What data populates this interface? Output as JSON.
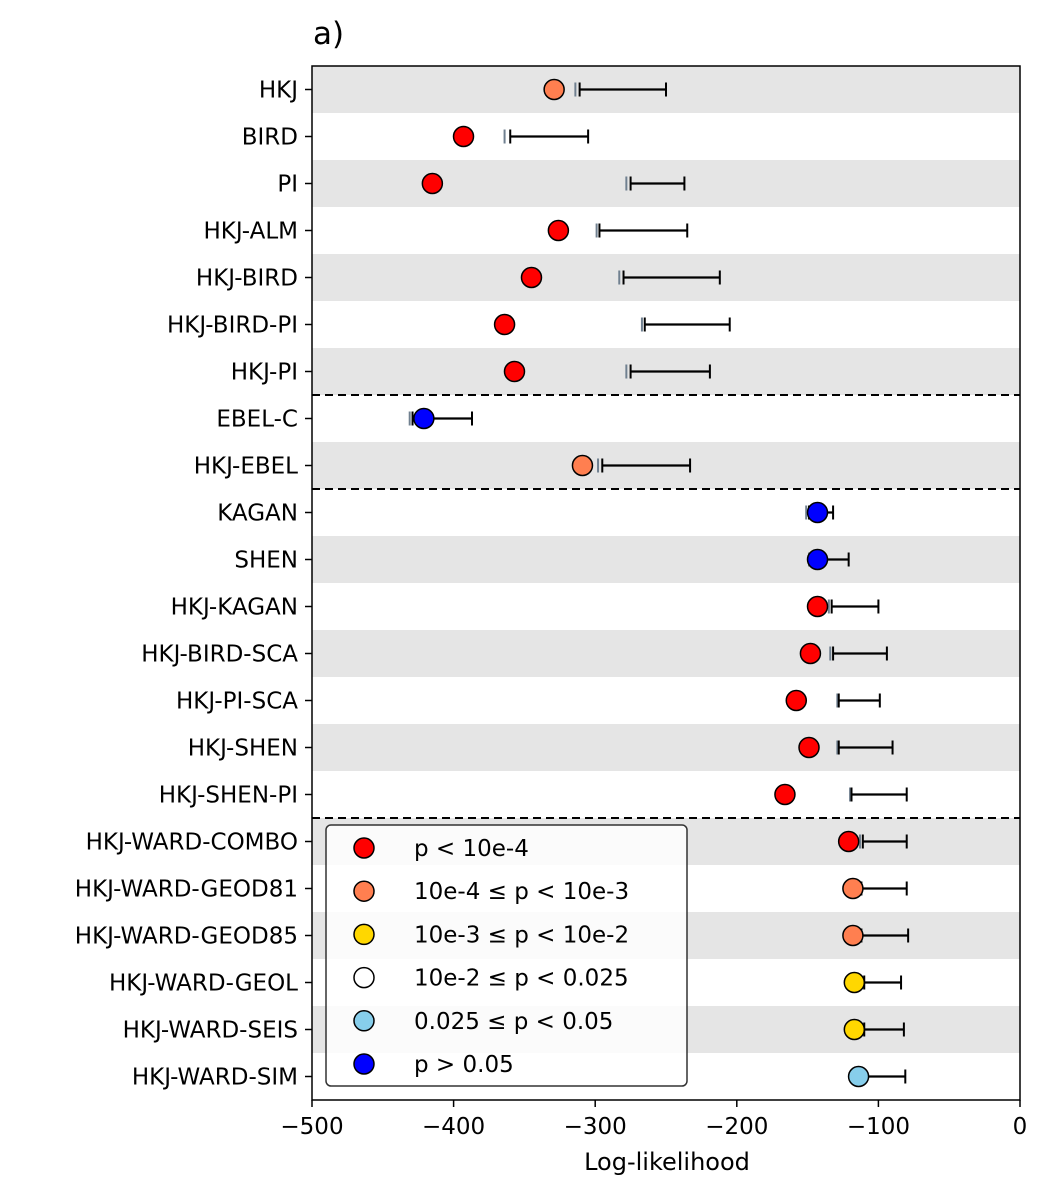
{
  "chart_data": {
    "type": "scatter",
    "title": "a)",
    "xlabel": "Log-likelihood",
    "ylabel": "",
    "xlim": [
      -500,
      0
    ],
    "xticks": [
      -500,
      -400,
      -300,
      -200,
      -100,
      0
    ],
    "xtick_labels": [
      "−500",
      "−400",
      "−300",
      "−200",
      "−100",
      "0"
    ],
    "row_shading": "alternating light grey / white bands",
    "group_separators_after": [
      "HKJ-PI",
      "HKJ-EBEL",
      "HKJ-SHEN-PI"
    ],
    "models": [
      {
        "name": "HKJ",
        "value": -329,
        "ci": [
          -311,
          -250
        ],
        "ref": -314,
        "class": "c1"
      },
      {
        "name": "BIRD",
        "value": -393,
        "ci": [
          -360,
          -305
        ],
        "ref": -364,
        "class": "c0"
      },
      {
        "name": "PI",
        "value": -415,
        "ci": [
          -275,
          -237
        ],
        "ref": -278,
        "class": "c0"
      },
      {
        "name": "HKJ-ALM",
        "value": -326,
        "ci": [
          -297,
          -235
        ],
        "ref": -299,
        "class": "c0"
      },
      {
        "name": "HKJ-BIRD",
        "value": -345,
        "ci": [
          -280,
          -212
        ],
        "ref": -283,
        "class": "c0"
      },
      {
        "name": "HKJ-BIRD-PI",
        "value": -364,
        "ci": [
          -265,
          -205
        ],
        "ref": -267,
        "class": "c0"
      },
      {
        "name": "HKJ-PI",
        "value": -357,
        "ci": [
          -275,
          -219
        ],
        "ref": -278,
        "class": "c0"
      },
      {
        "name": "EBEL-C",
        "value": -421,
        "ci": [
          -429,
          -387
        ],
        "ref": -431,
        "class": "c5"
      },
      {
        "name": "HKJ-EBEL",
        "value": -309,
        "ci": [
          -295,
          -233
        ],
        "ref": -298,
        "class": "c1"
      },
      {
        "name": "KAGAN",
        "value": -143,
        "ci": [
          -149,
          -132
        ],
        "ref": -151,
        "class": "c5"
      },
      {
        "name": "SHEN",
        "value": -143,
        "ci": [
          -147,
          -121
        ],
        "ref": -149,
        "class": "c5"
      },
      {
        "name": "HKJ-KAGAN",
        "value": -143,
        "ci": [
          -133,
          -100
        ],
        "ref": -135,
        "class": "c0"
      },
      {
        "name": "HKJ-BIRD-SCA",
        "value": -148,
        "ci": [
          -132,
          -94
        ],
        "ref": -134,
        "class": "c0"
      },
      {
        "name": "HKJ-PI-SCA",
        "value": -158,
        "ci": [
          -128,
          -99
        ],
        "ref": -129,
        "class": "c0"
      },
      {
        "name": "HKJ-SHEN",
        "value": -149,
        "ci": [
          -128,
          -90
        ],
        "ref": -129,
        "class": "c0"
      },
      {
        "name": "HKJ-SHEN-PI",
        "value": -166,
        "ci": [
          -119,
          -80
        ],
        "ref": -120,
        "class": "c0"
      },
      {
        "name": "HKJ-WARD-COMBO",
        "value": -121,
        "ci": [
          -111,
          -80
        ],
        "ref": -113,
        "class": "c0"
      },
      {
        "name": "HKJ-WARD-GEOD81",
        "value": -118,
        "ci": [
          -112,
          -80
        ],
        "ref": null,
        "class": "c1"
      },
      {
        "name": "HKJ-WARD-GEOD85",
        "value": -118,
        "ci": [
          -112,
          -79
        ],
        "ref": null,
        "class": "c1"
      },
      {
        "name": "HKJ-WARD-GEOL",
        "value": -117,
        "ci": [
          -110,
          -84
        ],
        "ref": null,
        "class": "c2"
      },
      {
        "name": "HKJ-WARD-SEIS",
        "value": -117,
        "ci": [
          -110,
          -82
        ],
        "ref": null,
        "class": "c2"
      },
      {
        "name": "HKJ-WARD-SIM",
        "value": -114,
        "ci": [
          -110,
          -81
        ],
        "ref": null,
        "class": "c4"
      }
    ],
    "legend": {
      "placement": "lower-left",
      "entries": [
        {
          "key": "c0",
          "label": "p < 10e-4",
          "color": "#ff0000"
        },
        {
          "key": "c1",
          "label": "10e-4 ≤ p < 10e-3",
          "color": "#ff7f50"
        },
        {
          "key": "c2",
          "label": "10e-3 ≤ p < 10e-2",
          "color": "#ffd700"
        },
        {
          "key": "c3",
          "label": "10e-2 ≤ p < 0.025",
          "color": "#ffffff"
        },
        {
          "key": "c4",
          "label": "0.025 ≤ p < 0.05",
          "color": "#87ceeb"
        },
        {
          "key": "c5",
          "label": "p > 0.05",
          "color": "#0000ff"
        }
      ]
    },
    "colors": {
      "band": "#e5e5e5",
      "ref_tick": "#708090",
      "marker_edge": "#000000"
    }
  }
}
